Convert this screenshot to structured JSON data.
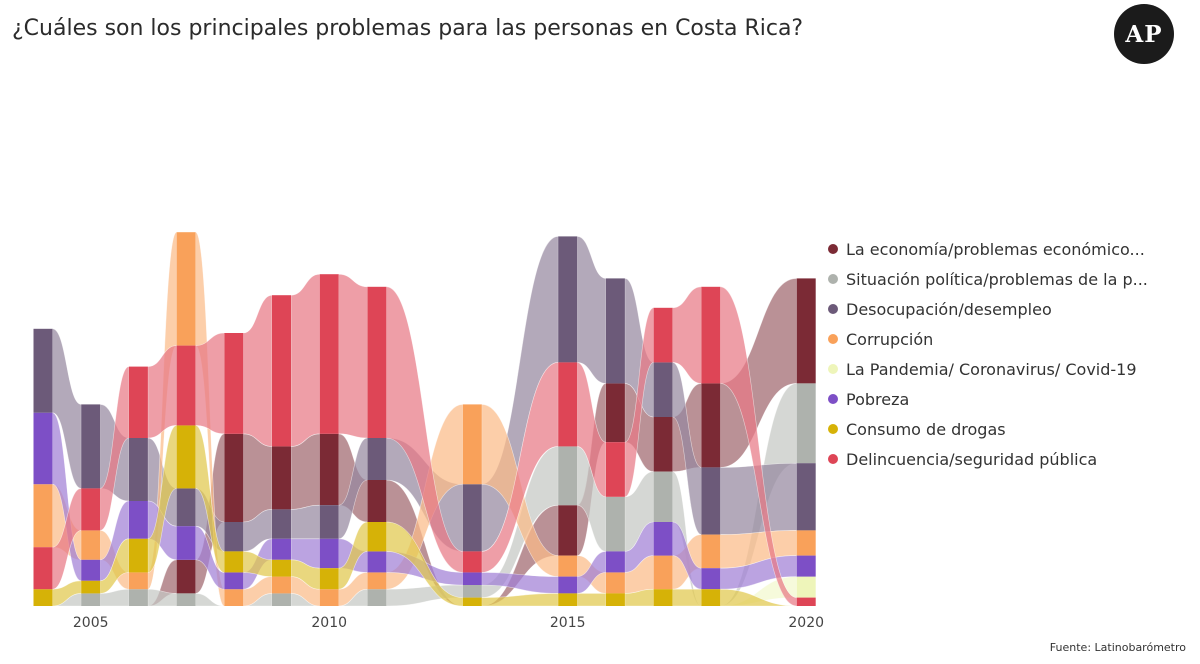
{
  "header": {
    "title": "¿Cuáles son los principales problemas para las personas en Costa Rica?",
    "logo_text": "AP"
  },
  "footer": {
    "source": "Fuente: Latinobarómetro"
  },
  "chart_data": {
    "type": "ribbon",
    "x_ticks": [
      "2005",
      "2010",
      "2015",
      "2020"
    ],
    "tick_years": [
      2005,
      2010,
      2015,
      2020
    ],
    "years": [
      2004,
      2005,
      2006,
      2007,
      2008,
      2009,
      2010,
      2011,
      2013,
      2015,
      2016,
      2017,
      2018,
      2020
    ],
    "series": [
      {
        "name": "La economía/problemas económico...",
        "color": "#7b2a35",
        "values": [
          0,
          0,
          0,
          8,
          21,
          15,
          17,
          10,
          0,
          12,
          14,
          13,
          20,
          25
        ]
      },
      {
        "name": "Situación política/problemas de la p...",
        "color": "#aeb2ad",
        "values": [
          0,
          3,
          4,
          3,
          0,
          3,
          0,
          4,
          3,
          14,
          13,
          12,
          0,
          19
        ]
      },
      {
        "name": "Desocupación/desempleo",
        "color": "#6c5a79",
        "values": [
          20,
          20,
          15,
          9,
          7,
          7,
          8,
          10,
          16,
          30,
          25,
          13,
          16,
          16
        ]
      },
      {
        "name": "Corrupción",
        "color": "#f9a15a",
        "values": [
          15,
          7,
          4,
          27,
          4,
          4,
          4,
          4,
          19,
          5,
          5,
          8,
          8,
          6
        ]
      },
      {
        "name": "La Pandemia/ Coronavirus/ Covid-19",
        "color": "#eef5ba",
        "values": [
          0,
          0,
          0,
          0,
          0,
          0,
          0,
          0,
          0,
          0,
          0,
          0,
          0,
          5
        ]
      },
      {
        "name": "Pobreza",
        "color": "#7d4fc6",
        "values": [
          17,
          5,
          9,
          8,
          4,
          5,
          7,
          5,
          3,
          4,
          5,
          8,
          5,
          5
        ]
      },
      {
        "name": "Consumo de drogas",
        "color": "#d6b207",
        "values": [
          4,
          3,
          8,
          15,
          5,
          4,
          5,
          7,
          2,
          3,
          3,
          4,
          4,
          0
        ]
      },
      {
        "name": "Delincuencia/seguridad pública",
        "color": "#de4556",
        "values": [
          10,
          10,
          17,
          19,
          24,
          36,
          38,
          36,
          5,
          20,
          13,
          13,
          23,
          2
        ]
      }
    ]
  }
}
